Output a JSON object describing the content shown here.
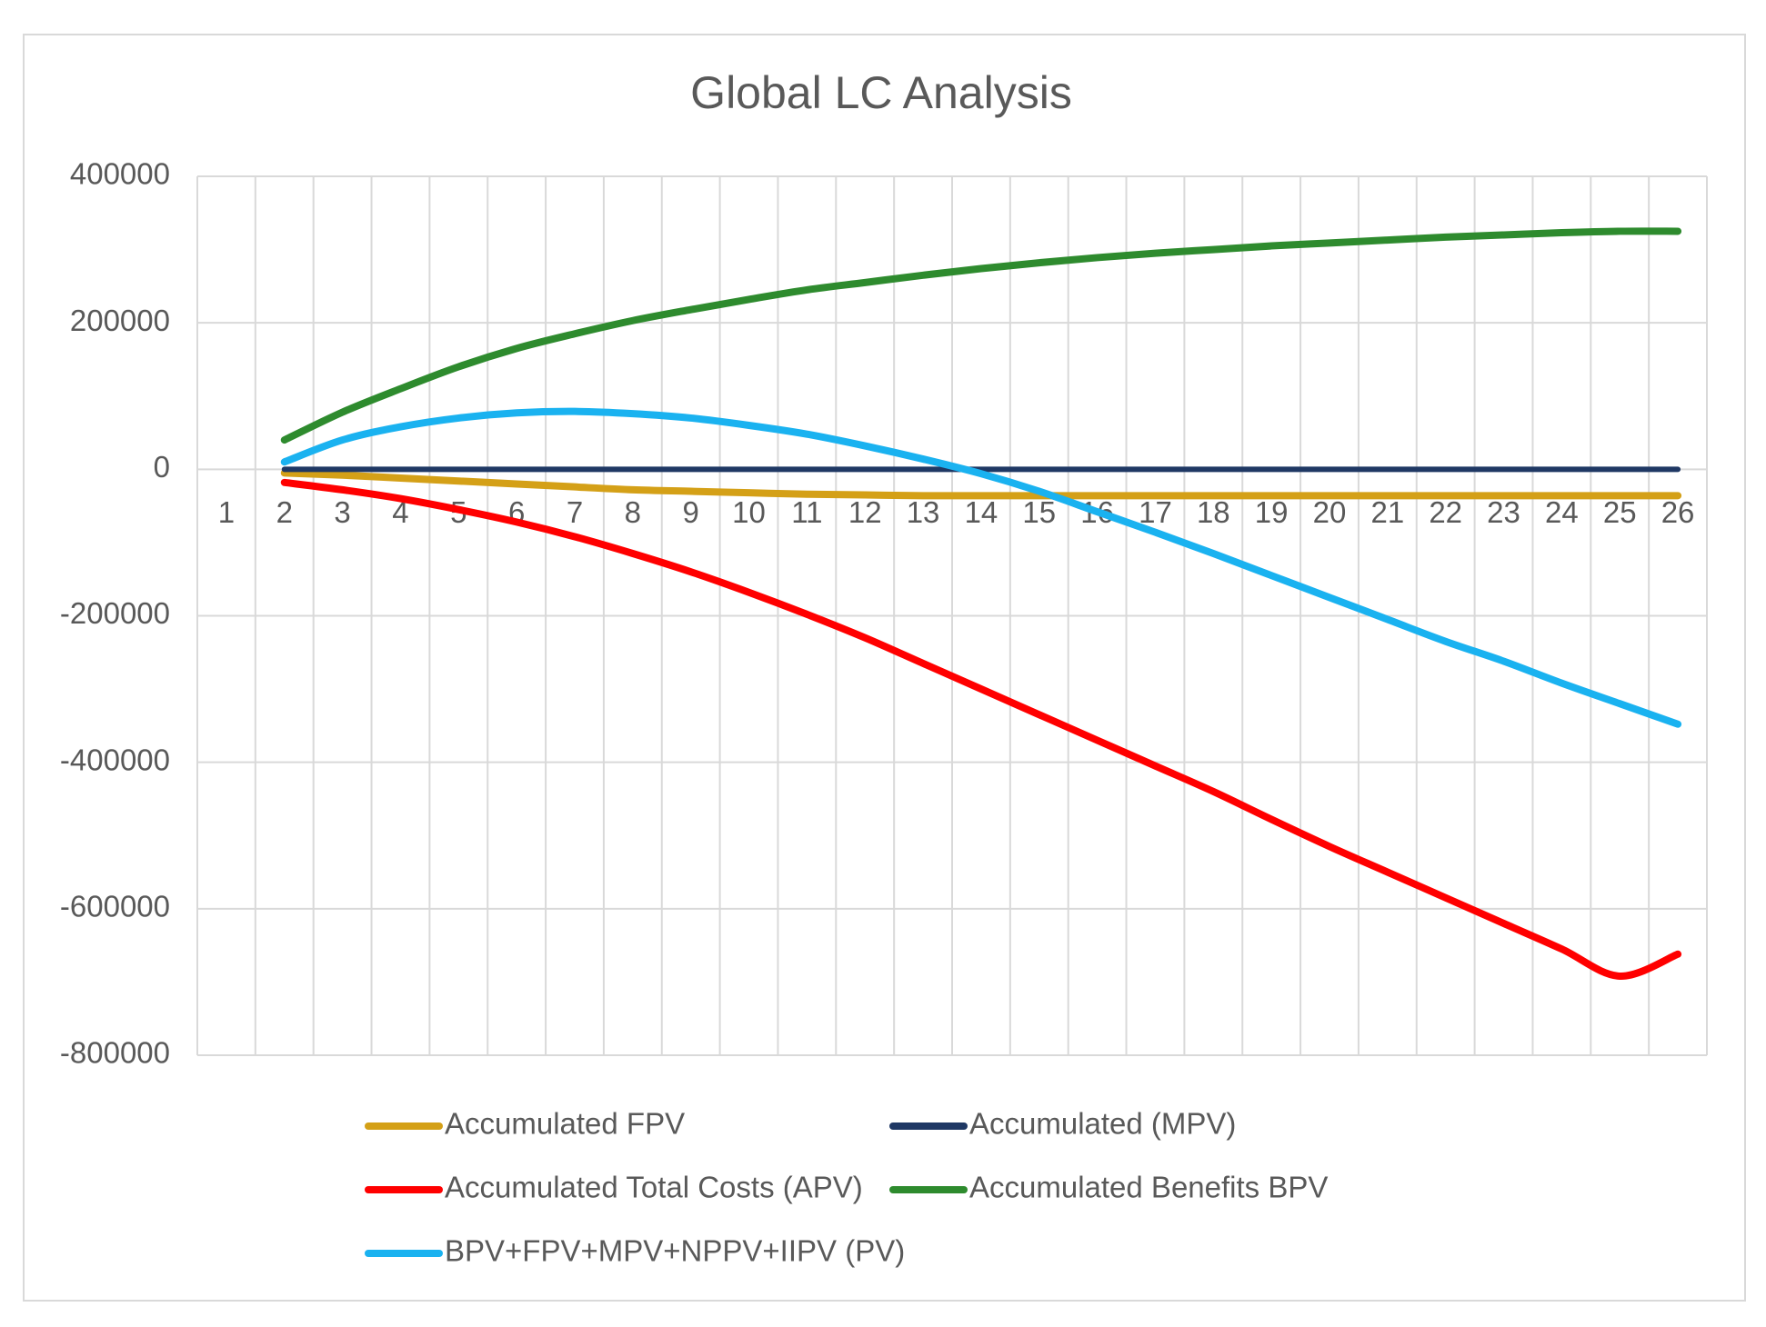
{
  "chart_data": {
    "type": "line",
    "title": "Global LC Analysis",
    "xlabel": "",
    "ylabel": "",
    "categories": [
      "1",
      "2",
      "3",
      "4",
      "5",
      "6",
      "7",
      "8",
      "9",
      "10",
      "11",
      "12",
      "13",
      "14",
      "15",
      "16",
      "17",
      "18",
      "19",
      "20",
      "21",
      "22",
      "23",
      "24",
      "25",
      "26"
    ],
    "ylim": [
      -800000,
      400000
    ],
    "yticks": [
      400000,
      200000,
      0,
      -200000,
      -400000,
      -600000,
      -800000
    ],
    "ytick_labels": [
      "400000",
      "200000",
      "0",
      "-200000",
      "-400000",
      "-600000",
      "-800000"
    ],
    "grid": true,
    "legend_position": "bottom",
    "series": [
      {
        "name": "Accumulated FPV",
        "color": "#d4a017",
        "values": [
          null,
          -5000,
          -8000,
          -12000,
          -16000,
          -20000,
          -24000,
          -28000,
          -30000,
          -32000,
          -34000,
          -35000,
          -36000,
          -36000,
          -36000,
          -36000,
          -36000,
          -36000,
          -36000,
          -36000,
          -36000,
          -36000,
          -36000,
          -36000,
          -36000,
          -36000
        ]
      },
      {
        "name": "Accumulated (MPV)",
        "color": "#1f3864",
        "values": [
          null,
          0,
          0,
          0,
          0,
          0,
          0,
          0,
          0,
          0,
          0,
          0,
          0,
          0,
          0,
          0,
          0,
          0,
          0,
          0,
          0,
          0,
          0,
          0,
          0,
          0
        ]
      },
      {
        "name": "Accumulated Total Costs (APV)",
        "color": "#ff0000",
        "values": [
          null,
          -18000,
          -28000,
          -40000,
          -55000,
          -72000,
          -92000,
          -115000,
          -140000,
          -168000,
          -198000,
          -230000,
          -265000,
          -300000,
          -335000,
          -370000,
          -405000,
          -440000,
          -478000,
          -515000,
          -550000,
          -585000,
          -620000,
          -655000,
          -692000,
          -662000
        ]
      },
      {
        "name": "Accumulated Benefits BPV",
        "color": "#2e8b2e",
        "values": [
          null,
          40000,
          78000,
          110000,
          140000,
          165000,
          185000,
          203000,
          218000,
          232000,
          245000,
          255000,
          265000,
          274000,
          282000,
          289000,
          295000,
          300000,
          305000,
          309000,
          313000,
          317000,
          320000,
          323000,
          325000,
          325000
        ]
      },
      {
        "name": "BPV+FPV+MPV+NPPV+IIPV (PV)",
        "color": "#1ab2f0",
        "values": [
          null,
          10000,
          40000,
          58000,
          70000,
          77000,
          79000,
          76000,
          70000,
          60000,
          48000,
          32000,
          14000,
          -6000,
          -30000,
          -58000,
          -86000,
          -115000,
          -145000,
          -175000,
          -205000,
          -235000,
          -262000,
          -292000,
          -320000,
          -348000
        ]
      }
    ]
  }
}
